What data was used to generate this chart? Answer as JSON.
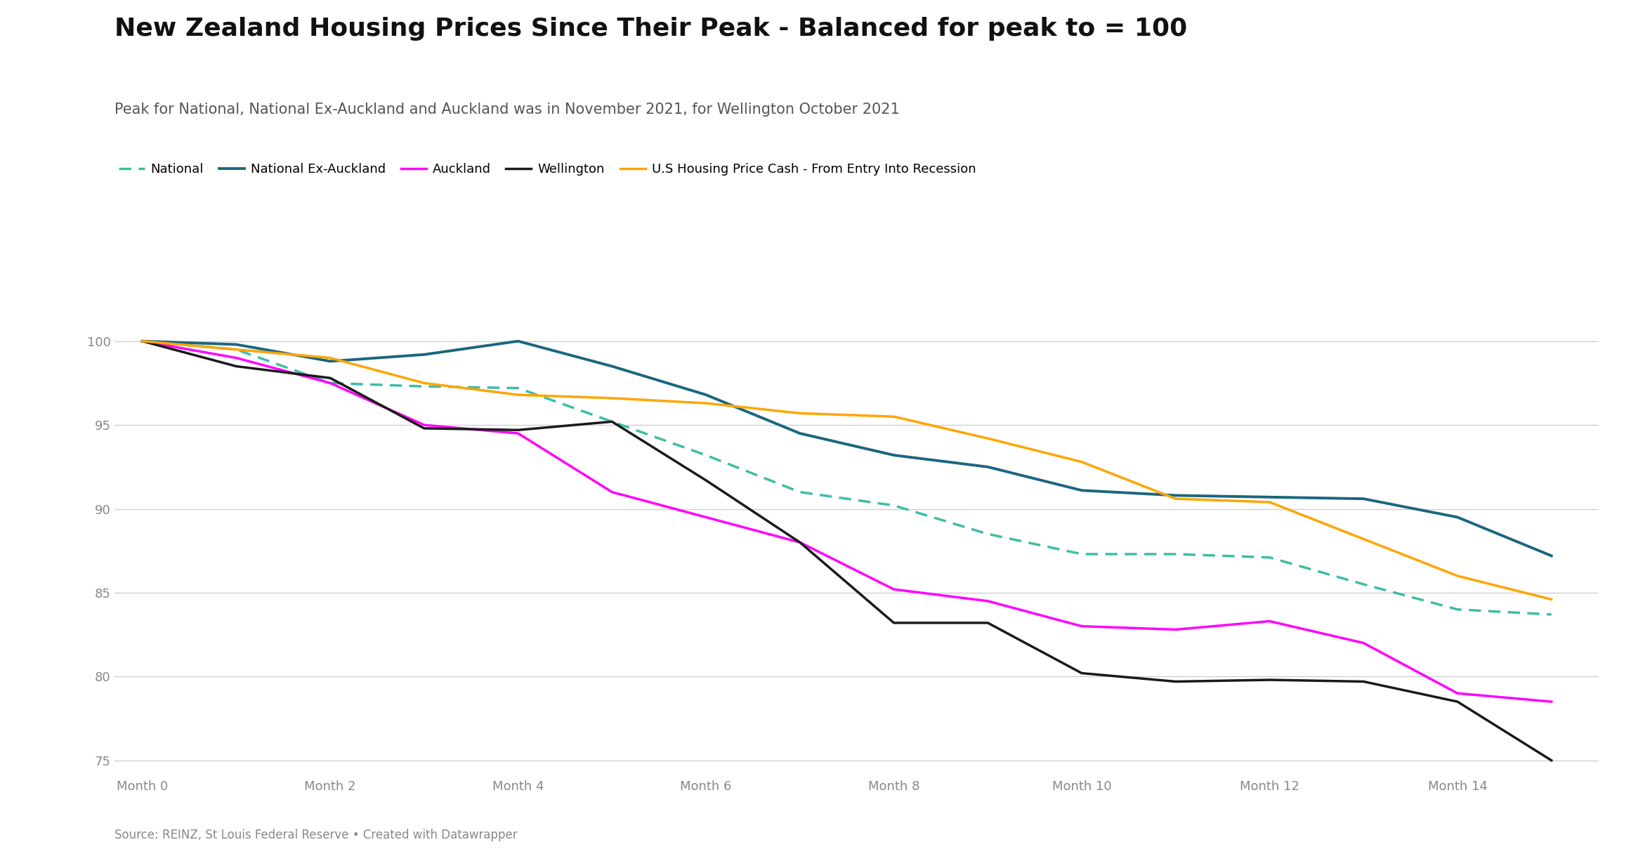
{
  "title": "New Zealand Housing Prices Since Their Peak - Balanced for peak to = 100",
  "subtitle": "Peak for National, National Ex-Auckland and Auckland was in November 2021, for Wellington October 2021",
  "source": "Source: REINZ, St Louis Federal Reserve • Created with Datawrapper",
  "x_labels": [
    "Month 0",
    "Month 2",
    "Month 4",
    "Month 6",
    "Month 8",
    "Month 10",
    "Month 12",
    "Month 14"
  ],
  "x_tick_positions": [
    0,
    2,
    4,
    6,
    8,
    10,
    12,
    14
  ],
  "series": {
    "National": {
      "color": "#3DBDA7",
      "linestyle": "dashed",
      "linewidth": 2.5,
      "values_x": [
        0,
        1,
        2,
        3,
        4,
        5,
        6,
        7,
        8,
        9,
        10,
        11,
        12,
        13,
        14,
        15
      ],
      "values_y": [
        100,
        99.5,
        97.5,
        97.3,
        97.2,
        95.2,
        93.2,
        91.0,
        90.2,
        88.5,
        87.3,
        87.3,
        87.1,
        85.5,
        84.0,
        83.7
      ]
    },
    "National Ex-Auckland": {
      "color": "#1A6680",
      "linestyle": "solid",
      "linewidth": 2.8,
      "values_x": [
        0,
        1,
        2,
        3,
        4,
        5,
        6,
        7,
        8,
        9,
        10,
        11,
        12,
        13,
        14,
        15
      ],
      "values_y": [
        100,
        99.8,
        98.8,
        99.2,
        100.0,
        98.5,
        96.8,
        94.5,
        93.2,
        92.5,
        91.1,
        90.8,
        90.7,
        90.6,
        89.5,
        87.2
      ]
    },
    "Auckland": {
      "color": "#FF00FF",
      "linestyle": "solid",
      "linewidth": 2.5,
      "values_x": [
        0,
        1,
        2,
        3,
        4,
        5,
        6,
        7,
        8,
        9,
        10,
        11,
        12,
        13,
        14,
        15
      ],
      "values_y": [
        100,
        99.0,
        97.5,
        95.0,
        94.5,
        91.0,
        89.5,
        88.0,
        85.2,
        84.5,
        83.0,
        82.8,
        83.3,
        82.0,
        79.0,
        78.5
      ]
    },
    "Wellington": {
      "color": "#1A1A1A",
      "linestyle": "solid",
      "linewidth": 2.5,
      "values_x": [
        0,
        1,
        2,
        3,
        4,
        5,
        6,
        7,
        8,
        9,
        10,
        11,
        12,
        13,
        14,
        15
      ],
      "values_y": [
        100,
        98.5,
        97.8,
        94.8,
        94.7,
        95.2,
        91.7,
        88.0,
        83.2,
        83.2,
        80.2,
        79.7,
        79.8,
        79.7,
        78.5,
        75.0
      ]
    },
    "U.S Housing Price Cash - From Entry Into Recession": {
      "color": "#FFA500",
      "linestyle": "solid",
      "linewidth": 2.5,
      "values_x": [
        0,
        1,
        2,
        3,
        4,
        5,
        6,
        7,
        8,
        9,
        10,
        11,
        12,
        13,
        14,
        15
      ],
      "values_y": [
        100,
        99.5,
        99.0,
        97.5,
        96.8,
        96.6,
        96.3,
        95.7,
        95.5,
        94.2,
        92.8,
        90.6,
        90.4,
        88.2,
        86.0,
        84.6
      ]
    }
  },
  "ylim": [
    74.0,
    101.5
  ],
  "yticks": [
    75,
    80,
    85,
    90,
    95,
    100
  ],
  "xlim": [
    -0.3,
    15.5
  ],
  "background_color": "#FFFFFF",
  "grid_color": "#CCCCCC",
  "title_fontsize": 26,
  "subtitle_fontsize": 15,
  "legend_fontsize": 13,
  "tick_fontsize": 13,
  "source_fontsize": 12
}
